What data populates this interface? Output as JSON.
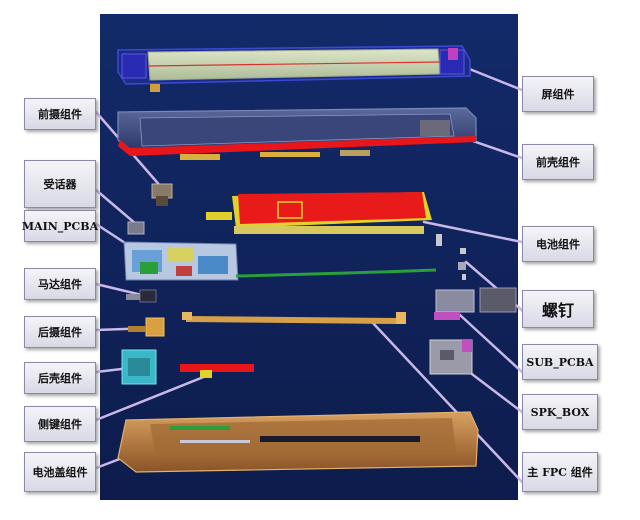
{
  "labels": {
    "screen_assembly": "屏组件",
    "front_housing": "前壳组件",
    "battery_assembly": "电池组件",
    "screws": "螺钉",
    "sub_pcba": "SUB_PCBA",
    "spk_box": "SPK_BOX",
    "main_fpc": "主 FPC 组件",
    "front_camera": "前摄组件",
    "receiver": "受话器",
    "main_pcba": "MAIN_PCBA",
    "motor": "马达组件",
    "rear_camera": "后摄组件",
    "rear_housing": "后壳组件",
    "side_key": "侧键组件",
    "battery_cover": "电池盖组件"
  },
  "colors": {
    "background": "#12245e",
    "background_edge": "#0b1740",
    "label_border": "#8a8aa8",
    "leader_line": "#c9b8e8",
    "screen_body": "#c9d7b4",
    "screen_frame": "#2a2bb4",
    "housing_red": "#e8151b",
    "battery_red": "#e81a1a",
    "battery_yellow": "#e2d12a",
    "pcb_green": "#2a9e3a",
    "fpc_orange": "#d6a04a",
    "cover_brown": "#b57a3c"
  }
}
